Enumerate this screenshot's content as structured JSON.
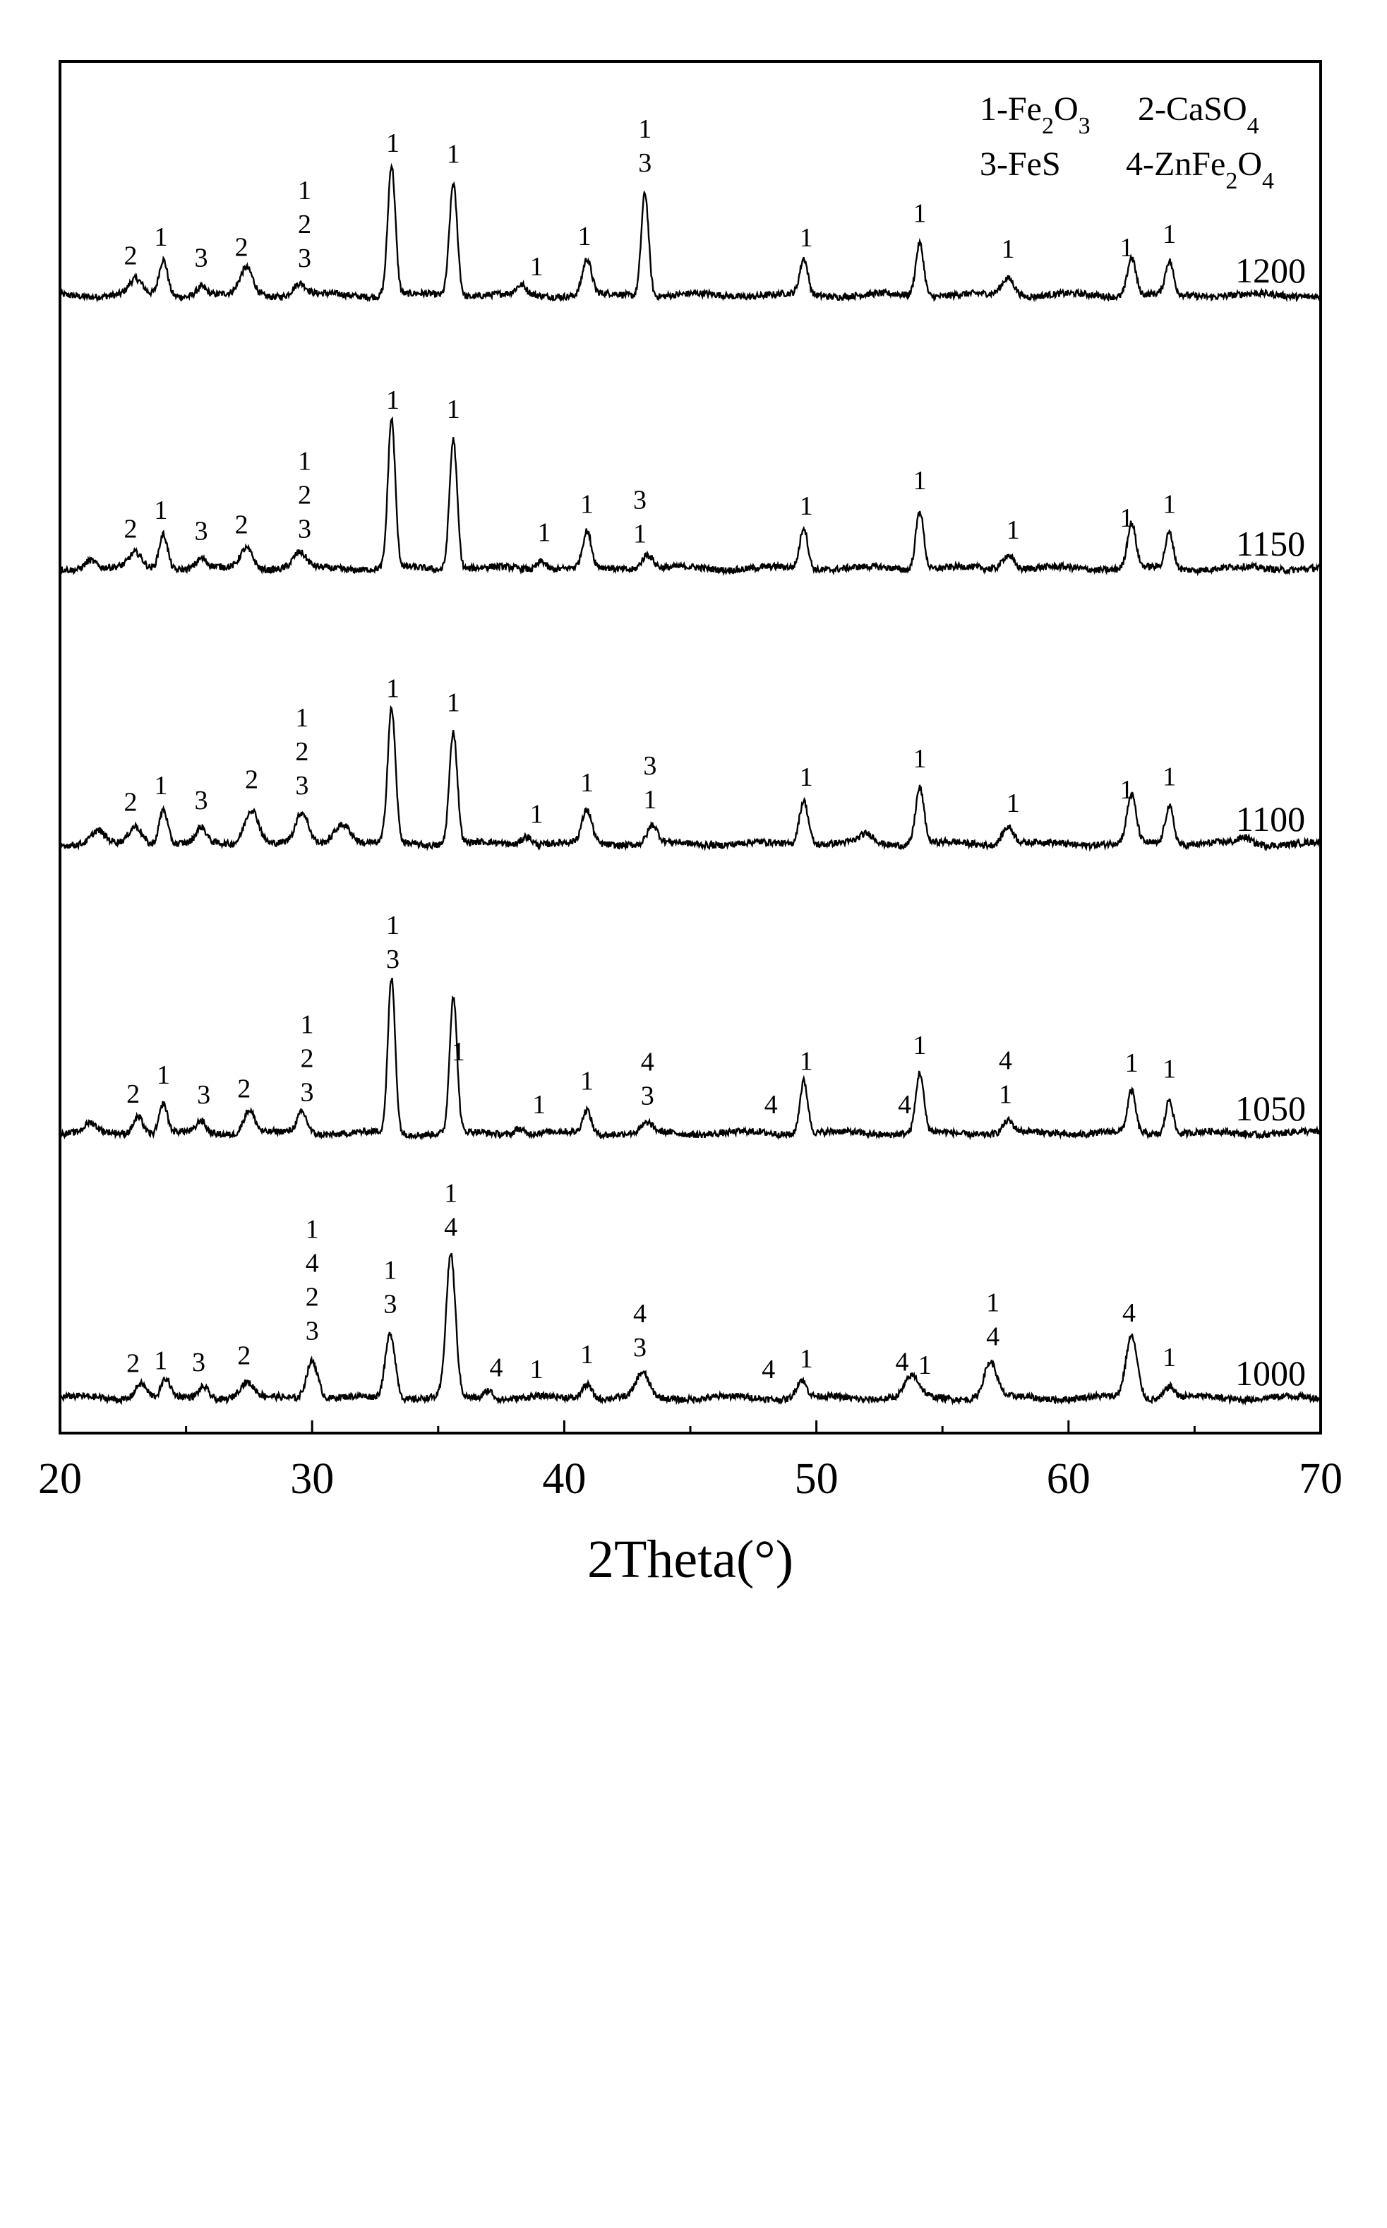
{
  "chart_data": {
    "type": "line",
    "xlabel": "2Theta(°)",
    "ylabel": "",
    "xlim": [
      20,
      70
    ],
    "xticks": [
      20,
      30,
      40,
      50,
      60,
      70
    ],
    "grid": false,
    "legend": {
      "placement": "top-right",
      "entries": [
        {
          "num": "1",
          "base": "Fe",
          "sub1": "2",
          "mid": "O",
          "sub2": "3"
        },
        {
          "num": "2",
          "base": "CaSO",
          "sub1": "4",
          "mid": "",
          "sub2": ""
        },
        {
          "num": "3",
          "base": "FeS",
          "sub1": "",
          "mid": "",
          "sub2": ""
        },
        {
          "num": "4",
          "base": "ZnFe",
          "sub1": "2",
          "mid": "O",
          "sub2": "4"
        }
      ]
    },
    "series": [
      {
        "name": "1200",
        "color": "#000000",
        "peaks": [
          {
            "x": 23.0,
            "h": 5,
            "w": 0.45
          },
          {
            "x": 24.1,
            "h": 12,
            "w": 0.3
          },
          {
            "x": 25.6,
            "h": 3,
            "w": 0.35
          },
          {
            "x": 27.4,
            "h": 9,
            "w": 0.45
          },
          {
            "x": 29.5,
            "h": 4,
            "w": 0.45
          },
          {
            "x": 33.15,
            "h": 44,
            "w": 0.27
          },
          {
            "x": 35.6,
            "h": 38,
            "w": 0.28
          },
          {
            "x": 38.3,
            "h": 3,
            "w": 0.35
          },
          {
            "x": 40.9,
            "h": 12,
            "w": 0.32
          },
          {
            "x": 43.2,
            "h": 35,
            "w": 0.26
          },
          {
            "x": 49.5,
            "h": 12,
            "w": 0.28
          },
          {
            "x": 54.1,
            "h": 18,
            "w": 0.28
          },
          {
            "x": 57.6,
            "h": 6,
            "w": 0.45
          },
          {
            "x": 62.5,
            "h": 13,
            "w": 0.3
          },
          {
            "x": 64.0,
            "h": 11,
            "w": 0.28
          }
        ],
        "labels": [
          {
            "x": 22.8,
            "lines": [
              "2"
            ]
          },
          {
            "x": 24.0,
            "lines": [
              "1"
            ]
          },
          {
            "x": 25.6,
            "lines": [
              "3"
            ]
          },
          {
            "x": 27.2,
            "lines": [
              "2"
            ]
          },
          {
            "x": 29.7,
            "lines": [
              "1",
              "2",
              "3"
            ]
          },
          {
            "x": 33.2,
            "lines": [
              "1"
            ]
          },
          {
            "x": 35.6,
            "lines": [
              "1"
            ]
          },
          {
            "x": 38.9,
            "lines": [
              "1"
            ]
          },
          {
            "x": 40.8,
            "lines": [
              "1"
            ]
          },
          {
            "x": 43.2,
            "lines": [
              "1",
              "3"
            ]
          },
          {
            "x": 49.6,
            "lines": [
              "1"
            ]
          },
          {
            "x": 54.1,
            "lines": [
              "1"
            ]
          },
          {
            "x": 57.6,
            "lines": [
              "1"
            ]
          },
          {
            "x": 62.3,
            "lines": [
              "1"
            ]
          },
          {
            "x": 64.0,
            "lines": [
              "1"
            ]
          }
        ]
      },
      {
        "name": "1150",
        "color": "#000000",
        "peaks": [
          {
            "x": 21.2,
            "h": 3,
            "w": 0.4
          },
          {
            "x": 23.0,
            "h": 5,
            "w": 0.45
          },
          {
            "x": 24.1,
            "h": 12,
            "w": 0.3
          },
          {
            "x": 25.6,
            "h": 3,
            "w": 0.35
          },
          {
            "x": 27.4,
            "h": 7,
            "w": 0.45
          },
          {
            "x": 29.5,
            "h": 5,
            "w": 0.45
          },
          {
            "x": 33.15,
            "h": 50,
            "w": 0.26
          },
          {
            "x": 35.6,
            "h": 44,
            "w": 0.27
          },
          {
            "x": 39.1,
            "h": 3,
            "w": 0.3
          },
          {
            "x": 40.9,
            "h": 12,
            "w": 0.3
          },
          {
            "x": 43.3,
            "h": 5,
            "w": 0.4
          },
          {
            "x": 49.5,
            "h": 14,
            "w": 0.28
          },
          {
            "x": 54.1,
            "h": 20,
            "w": 0.28
          },
          {
            "x": 57.6,
            "h": 5,
            "w": 0.4
          },
          {
            "x": 62.5,
            "h": 15,
            "w": 0.3
          },
          {
            "x": 64.0,
            "h": 12,
            "w": 0.28
          }
        ],
        "labels": [
          {
            "x": 22.8,
            "lines": [
              "2"
            ]
          },
          {
            "x": 24.0,
            "lines": [
              "1"
            ]
          },
          {
            "x": 25.6,
            "lines": [
              "3"
            ]
          },
          {
            "x": 27.2,
            "lines": [
              "2"
            ]
          },
          {
            "x": 29.7,
            "lines": [
              "1",
              "2",
              "3"
            ]
          },
          {
            "x": 33.2,
            "lines": [
              "1"
            ]
          },
          {
            "x": 35.6,
            "lines": [
              "1"
            ]
          },
          {
            "x": 39.2,
            "lines": [
              "1"
            ]
          },
          {
            "x": 40.9,
            "lines": [
              "1"
            ]
          },
          {
            "x": 43.0,
            "lines": [
              "3",
              "1"
            ]
          },
          {
            "x": 49.6,
            "lines": [
              "1"
            ]
          },
          {
            "x": 54.1,
            "lines": [
              "1"
            ]
          },
          {
            "x": 57.8,
            "lines": [
              "1"
            ]
          },
          {
            "x": 62.3,
            "lines": [
              "1"
            ]
          },
          {
            "x": 64.0,
            "lines": [
              "1"
            ]
          }
        ]
      },
      {
        "name": "1100",
        "color": "#000000",
        "peaks": [
          {
            "x": 21.5,
            "h": 4,
            "w": 0.45
          },
          {
            "x": 23.0,
            "h": 6,
            "w": 0.45
          },
          {
            "x": 24.1,
            "h": 12,
            "w": 0.3
          },
          {
            "x": 25.6,
            "h": 5,
            "w": 0.35
          },
          {
            "x": 27.6,
            "h": 12,
            "w": 0.5
          },
          {
            "x": 29.6,
            "h": 10,
            "w": 0.45
          },
          {
            "x": 31.2,
            "h": 7,
            "w": 0.6
          },
          {
            "x": 33.15,
            "h": 45,
            "w": 0.28
          },
          {
            "x": 35.6,
            "h": 38,
            "w": 0.28
          },
          {
            "x": 38.5,
            "h": 3,
            "w": 0.35
          },
          {
            "x": 40.9,
            "h": 11,
            "w": 0.35
          },
          {
            "x": 43.5,
            "h": 6,
            "w": 0.35
          },
          {
            "x": 49.5,
            "h": 15,
            "w": 0.32
          },
          {
            "x": 52.0,
            "h": 3,
            "w": 0.5
          },
          {
            "x": 54.1,
            "h": 19,
            "w": 0.3
          },
          {
            "x": 57.6,
            "h": 6,
            "w": 0.4
          },
          {
            "x": 62.5,
            "h": 16,
            "w": 0.32
          },
          {
            "x": 64.0,
            "h": 13,
            "w": 0.3
          },
          {
            "x": 67.0,
            "h": 2,
            "w": 0.4
          }
        ],
        "labels": [
          {
            "x": 22.8,
            "lines": [
              "2"
            ]
          },
          {
            "x": 24.0,
            "lines": [
              "1"
            ]
          },
          {
            "x": 25.6,
            "lines": [
              "3"
            ]
          },
          {
            "x": 27.6,
            "lines": [
              "2"
            ]
          },
          {
            "x": 29.6,
            "lines": [
              "1",
              "2",
              "3"
            ]
          },
          {
            "x": 33.2,
            "lines": [
              "1"
            ]
          },
          {
            "x": 35.6,
            "lines": [
              "1"
            ]
          },
          {
            "x": 38.9,
            "lines": [
              "1"
            ]
          },
          {
            "x": 40.9,
            "lines": [
              "1"
            ]
          },
          {
            "x": 43.4,
            "lines": [
              "3",
              "1"
            ]
          },
          {
            "x": 49.6,
            "lines": [
              "1"
            ]
          },
          {
            "x": 54.1,
            "lines": [
              "1"
            ]
          },
          {
            "x": 57.8,
            "lines": [
              "1"
            ]
          },
          {
            "x": 62.3,
            "lines": [
              "1"
            ]
          },
          {
            "x": 64.0,
            "lines": [
              "1"
            ]
          }
        ]
      },
      {
        "name": "1050",
        "color": "#000000",
        "peaks": [
          {
            "x": 21.2,
            "h": 3,
            "w": 0.4
          },
          {
            "x": 23.1,
            "h": 6,
            "w": 0.35
          },
          {
            "x": 24.1,
            "h": 10,
            "w": 0.28
          },
          {
            "x": 25.6,
            "h": 4,
            "w": 0.3
          },
          {
            "x": 27.5,
            "h": 8,
            "w": 0.4
          },
          {
            "x": 29.6,
            "h": 7,
            "w": 0.35
          },
          {
            "x": 33.15,
            "h": 52,
            "w": 0.26
          },
          {
            "x": 35.6,
            "h": 46,
            "w": 0.26
          },
          {
            "x": 38.2,
            "h": 2,
            "w": 0.3
          },
          {
            "x": 40.9,
            "h": 8,
            "w": 0.3
          },
          {
            "x": 43.3,
            "h": 3,
            "w": 0.35
          },
          {
            "x": 49.5,
            "h": 18,
            "w": 0.28
          },
          {
            "x": 54.1,
            "h": 20,
            "w": 0.28
          },
          {
            "x": 57.6,
            "h": 4,
            "w": 0.35
          },
          {
            "x": 62.5,
            "h": 14,
            "w": 0.28
          },
          {
            "x": 64.0,
            "h": 12,
            "w": 0.26
          }
        ],
        "labels": [
          {
            "x": 22.9,
            "lines": [
              "2"
            ]
          },
          {
            "x": 24.1,
            "lines": [
              "1"
            ]
          },
          {
            "x": 25.7,
            "lines": [
              "3"
            ]
          },
          {
            "x": 27.3,
            "lines": [
              "2"
            ]
          },
          {
            "x": 29.8,
            "lines": [
              "1",
              "2",
              "3"
            ]
          },
          {
            "x": 33.2,
            "lines": [
              "1",
              "3"
            ]
          },
          {
            "x": 35.8,
            "lines": [
              "1"
            ]
          },
          {
            "x": 39.0,
            "lines": [
              "1"
            ]
          },
          {
            "x": 40.9,
            "lines": [
              "1"
            ]
          },
          {
            "x": 43.3,
            "lines": [
              "4",
              "3"
            ]
          },
          {
            "x": 48.2,
            "lines": [
              "4"
            ]
          },
          {
            "x": 49.6,
            "lines": [
              "1"
            ]
          },
          {
            "x": 53.5,
            "lines": [
              "4"
            ]
          },
          {
            "x": 54.1,
            "lines": [
              "1"
            ]
          },
          {
            "x": 57.5,
            "lines": [
              "4",
              "1"
            ]
          },
          {
            "x": 62.5,
            "lines": [
              "1"
            ]
          },
          {
            "x": 64.0,
            "lines": [
              "1"
            ]
          }
        ]
      },
      {
        "name": "1000",
        "color": "#000000",
        "peaks": [
          {
            "x": 23.2,
            "h": 5,
            "w": 0.4
          },
          {
            "x": 24.2,
            "h": 6,
            "w": 0.3
          },
          {
            "x": 25.7,
            "h": 4,
            "w": 0.35
          },
          {
            "x": 27.4,
            "h": 5,
            "w": 0.5
          },
          {
            "x": 30.0,
            "h": 13,
            "w": 0.4
          },
          {
            "x": 33.1,
            "h": 22,
            "w": 0.35
          },
          {
            "x": 35.5,
            "h": 48,
            "w": 0.33
          },
          {
            "x": 37.0,
            "h": 3,
            "w": 0.3
          },
          {
            "x": 40.9,
            "h": 5,
            "w": 0.35
          },
          {
            "x": 43.1,
            "h": 8,
            "w": 0.45
          },
          {
            "x": 49.4,
            "h": 6,
            "w": 0.35
          },
          {
            "x": 53.8,
            "h": 7,
            "w": 0.5
          },
          {
            "x": 56.9,
            "h": 12,
            "w": 0.45
          },
          {
            "x": 62.5,
            "h": 21,
            "w": 0.4
          },
          {
            "x": 64.0,
            "h": 4,
            "w": 0.35
          }
        ],
        "labels": [
          {
            "x": 22.9,
            "lines": [
              "2"
            ]
          },
          {
            "x": 24.0,
            "lines": [
              "1"
            ]
          },
          {
            "x": 25.5,
            "lines": [
              "3"
            ]
          },
          {
            "x": 27.3,
            "lines": [
              "2"
            ]
          },
          {
            "x": 30.0,
            "lines": [
              "1",
              "4",
              "2",
              "3"
            ]
          },
          {
            "x": 33.1,
            "lines": [
              "1",
              "3"
            ]
          },
          {
            "x": 35.5,
            "lines": [
              "1",
              "4"
            ]
          },
          {
            "x": 37.3,
            "lines": [
              "4"
            ]
          },
          {
            "x": 38.9,
            "lines": [
              "1"
            ]
          },
          {
            "x": 40.9,
            "lines": [
              "1"
            ]
          },
          {
            "x": 43.0,
            "lines": [
              "4",
              "3"
            ]
          },
          {
            "x": 48.1,
            "lines": [
              "4"
            ]
          },
          {
            "x": 49.6,
            "lines": [
              "1"
            ]
          },
          {
            "x": 53.4,
            "lines": [
              "4"
            ]
          },
          {
            "x": 54.3,
            "lines": [
              "1"
            ]
          },
          {
            "x": 57.0,
            "lines": [
              "1",
              "4"
            ]
          },
          {
            "x": 62.4,
            "lines": [
              "4"
            ]
          },
          {
            "x": 64.0,
            "lines": [
              "1"
            ]
          }
        ]
      }
    ]
  }
}
